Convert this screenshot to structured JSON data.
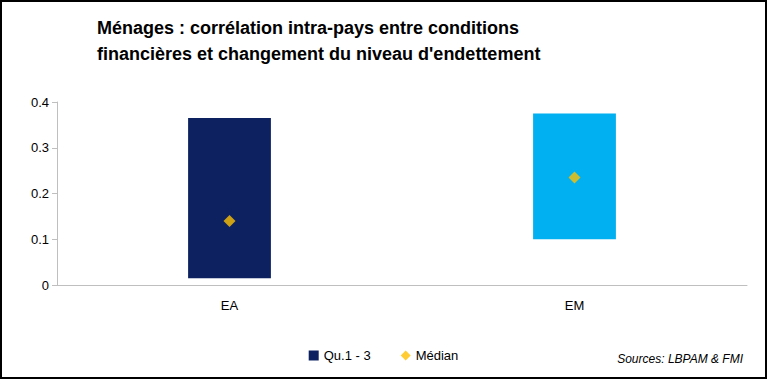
{
  "chart_data": {
    "type": "range_bar",
    "title": "Ménages : corrélation intra-pays entre conditions\nfinancières et changement du niveau d'endettement",
    "annotation": "Sources: LBPAM & FMI",
    "categories": [
      "EA",
      "EM"
    ],
    "series": [
      {
        "name": "Qu.1 - 3",
        "type": "range_bar",
        "color": "#0d2160",
        "colors": [
          "#0d2160",
          "#00b0f0"
        ],
        "low": [
          0.015,
          0.1
        ],
        "high": [
          0.365,
          0.375
        ]
      },
      {
        "name": "Médian",
        "type": "scatter",
        "marker": "diamond",
        "color": "#ffc000",
        "values": [
          0.14,
          0.235
        ]
      }
    ],
    "ylim": [
      0,
      0.4
    ],
    "yticks": [
      0,
      0.1,
      0.2,
      0.3,
      0.4
    ],
    "grid": false,
    "legend": "bottom"
  }
}
